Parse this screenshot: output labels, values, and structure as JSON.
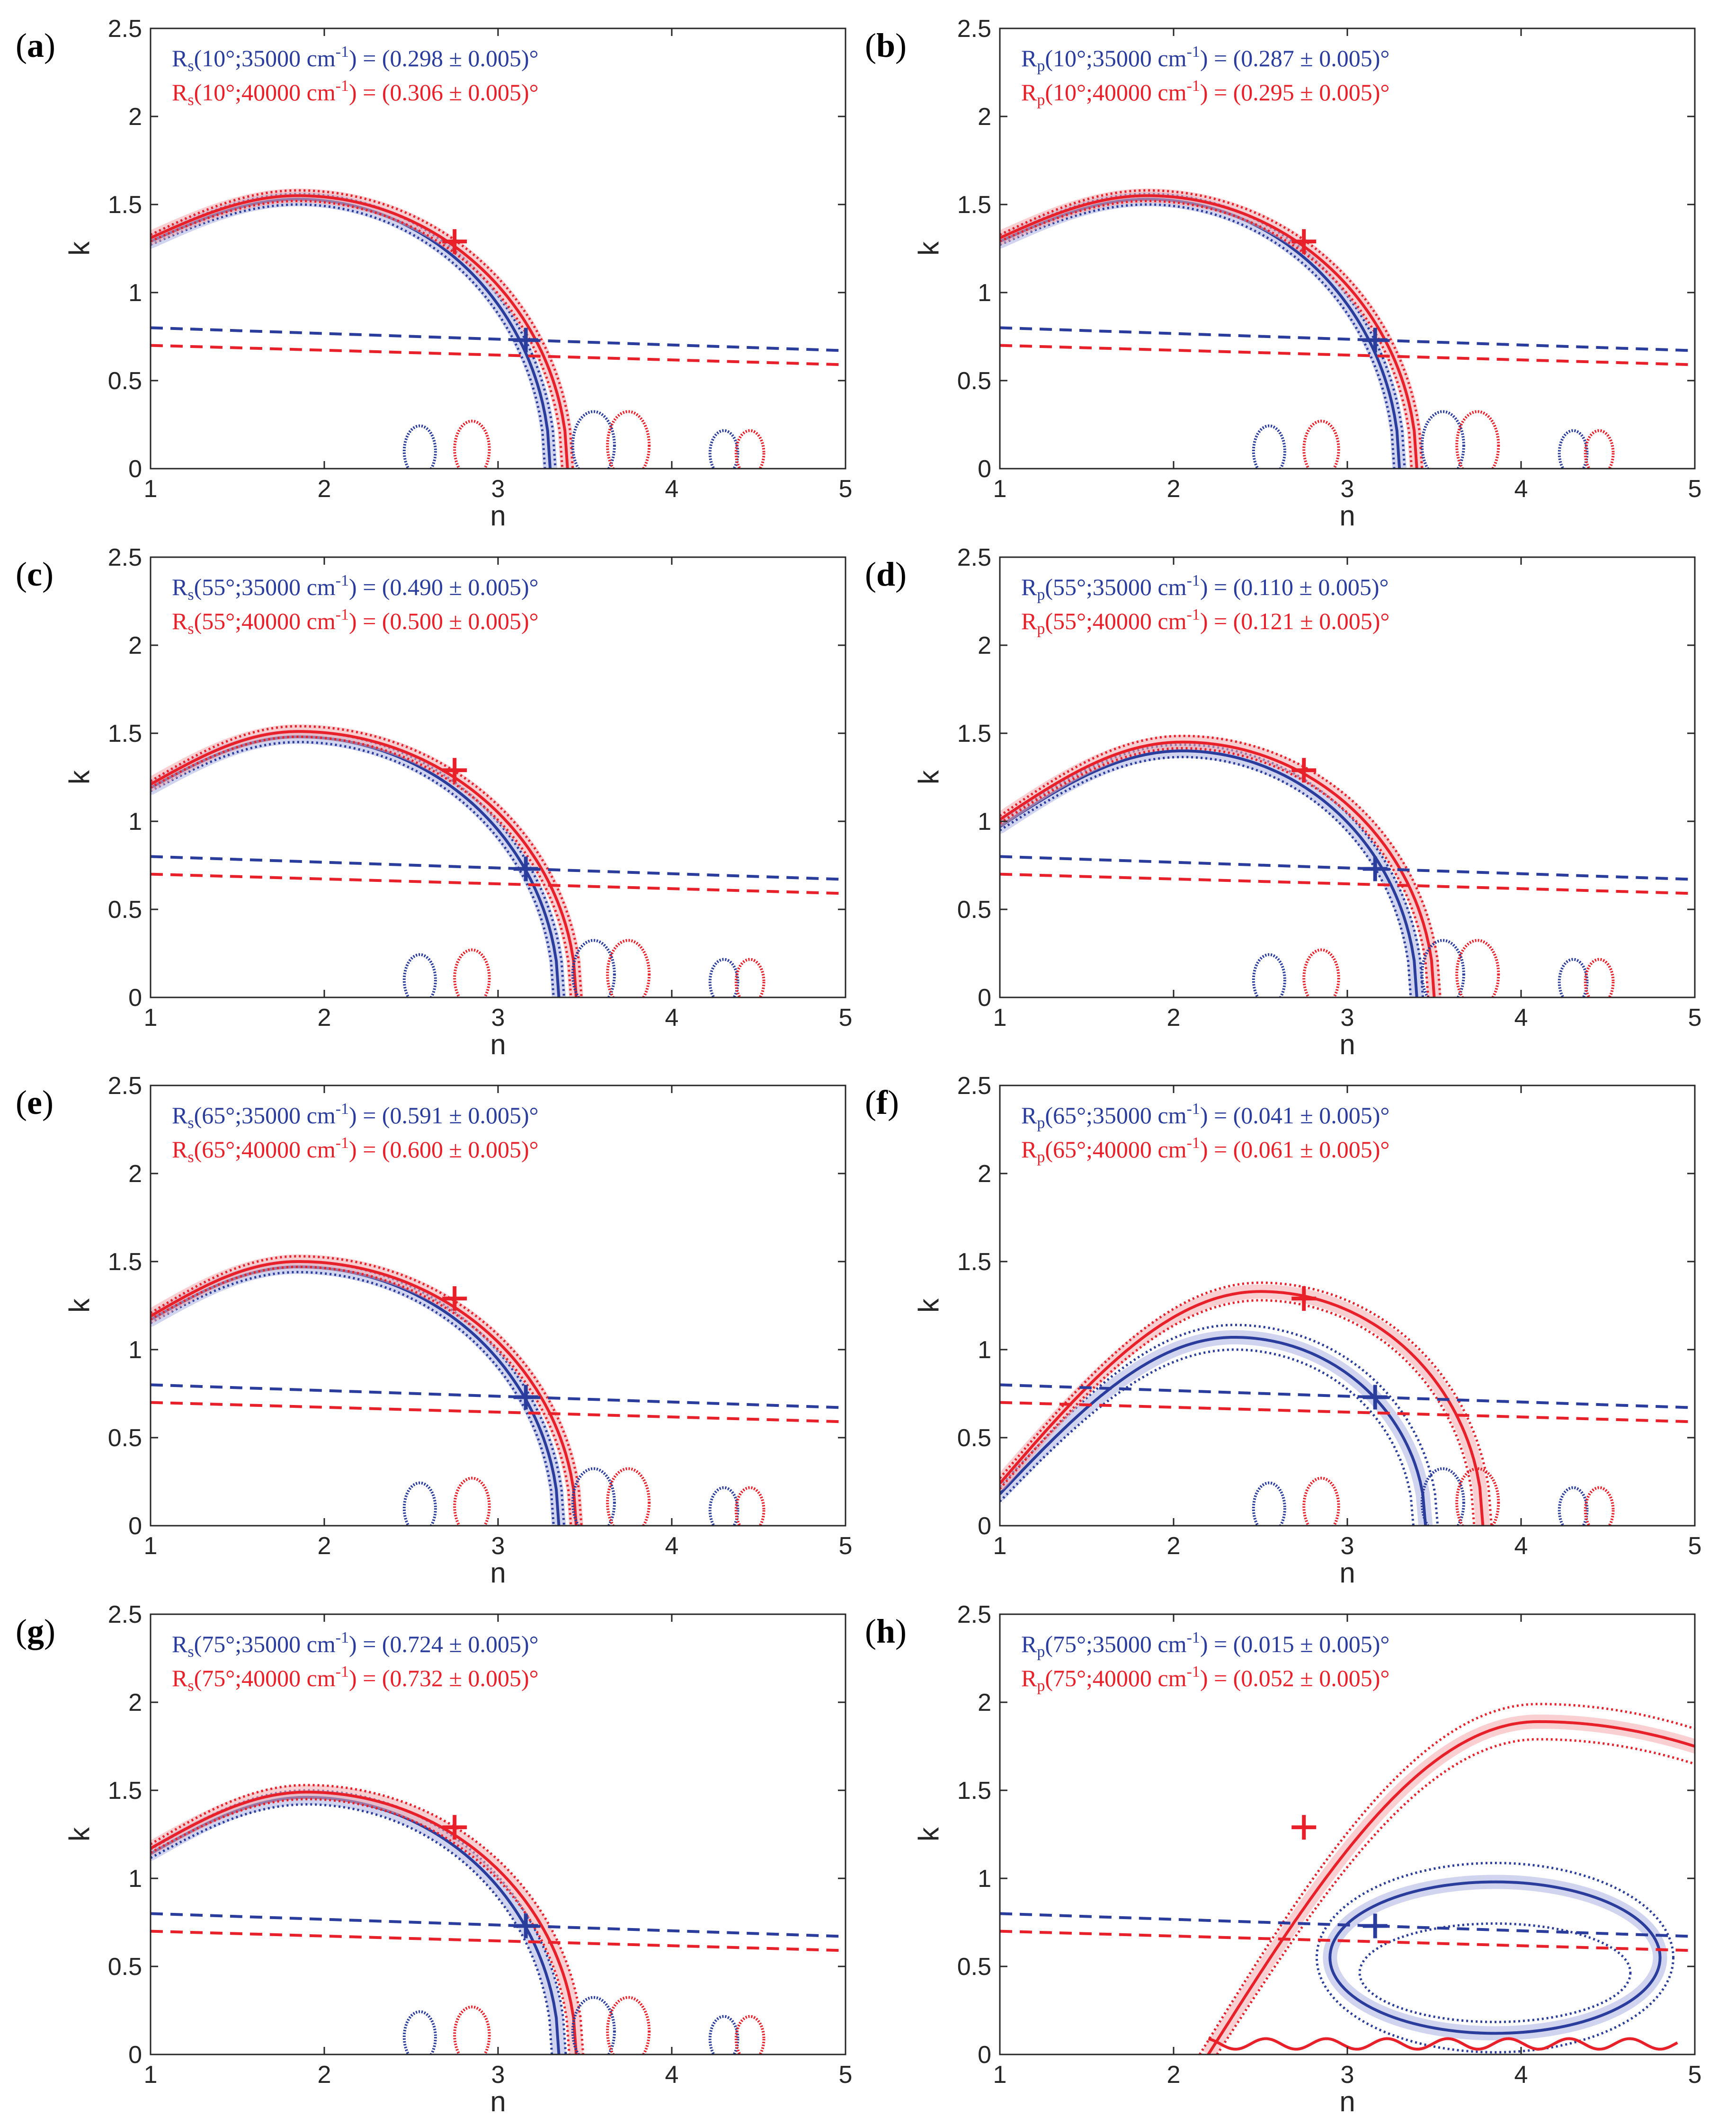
{
  "colors": {
    "blue": "#2a3d9c",
    "red": "#e8202a",
    "blue_band": "#a9b0e0",
    "red_band": "#f5a7ad",
    "axes": "#262626"
  },
  "chart_data": [
    {
      "type": "line",
      "panel_label": "(a)",
      "xlabel": "n",
      "ylabel": "k",
      "xlim": [
        1,
        5
      ],
      "ylim": [
        0,
        2.5
      ],
      "xticks": [
        "1",
        "2",
        "3",
        "4",
        "5"
      ],
      "yticks": [
        "0",
        "0.5",
        "1",
        "1.5",
        "2",
        "2.5"
      ],
      "annotations": [
        {
          "sym": "R",
          "sub": "s",
          "text": "(10°;35000 cm",
          "sup": "-1",
          "value": ") = (0.298 ± 0.005)°",
          "color": "blue"
        },
        {
          "sym": "R",
          "sub": "s",
          "text": "(10°;40000 cm",
          "sup": "-1",
          "value": ") = (0.306 ± 0.005)°",
          "color": "red"
        }
      ],
      "markers": [
        {
          "series": "35000 cm-1",
          "n": 3.16,
          "k": 0.73
        },
        {
          "series": "40000 cm-1",
          "n": 2.75,
          "k": 1.29
        }
      ],
      "arcs": [
        {
          "series": "35000 cm-1",
          "n0": 1.0,
          "k0": 1.29,
          "kmax": 1.53,
          "n_peak": 1.85,
          "n_end": 3.3,
          "spread": 0.03
        },
        {
          "series": "40000 cm-1",
          "n0": 1.0,
          "k0": 1.31,
          "kmax": 1.55,
          "n_peak": 1.85,
          "n_end": 3.4,
          "spread": 0.03
        }
      ],
      "dispersion_lines": [
        {
          "series": "35000 cm-1",
          "k_at_1": 0.8,
          "k_at_5": 0.67
        },
        {
          "series": "40000 cm-1",
          "k_at_1": 0.7,
          "k_at_5": 0.59
        }
      ]
    },
    {
      "type": "line",
      "panel_label": "(b)",
      "xlabel": "n",
      "ylabel": "k",
      "xlim": [
        1,
        5
      ],
      "ylim": [
        0,
        2.5
      ],
      "xticks": [
        "1",
        "2",
        "3",
        "4",
        "5"
      ],
      "yticks": [
        "0",
        "0.5",
        "1",
        "1.5",
        "2",
        "2.5"
      ],
      "annotations": [
        {
          "sym": "R",
          "sub": "p",
          "text": "(10°;35000 cm",
          "sup": "-1",
          "value": ") = (0.287 ± 0.005)°",
          "color": "blue"
        },
        {
          "sym": "R",
          "sub": "p",
          "text": "(10°;40000 cm",
          "sup": "-1",
          "value": ") = (0.295 ± 0.005)°",
          "color": "red"
        }
      ],
      "markers": [
        {
          "series": "35000 cm-1",
          "n": 3.16,
          "k": 0.73
        },
        {
          "series": "40000 cm-1",
          "n": 2.75,
          "k": 1.29
        }
      ],
      "arcs": [
        {
          "series": "35000 cm-1",
          "n0": 1.0,
          "k0": 1.29,
          "kmax": 1.53,
          "n_peak": 1.85,
          "n_end": 3.3,
          "spread": 0.03
        },
        {
          "series": "40000 cm-1",
          "n0": 1.0,
          "k0": 1.31,
          "kmax": 1.55,
          "n_peak": 1.85,
          "n_end": 3.4,
          "spread": 0.03
        }
      ],
      "dispersion_lines": [
        {
          "series": "35000 cm-1",
          "k_at_1": 0.8,
          "k_at_5": 0.67
        },
        {
          "series": "40000 cm-1",
          "k_at_1": 0.7,
          "k_at_5": 0.59
        }
      ]
    },
    {
      "type": "line",
      "panel_label": "(c)",
      "xlabel": "n",
      "ylabel": "k",
      "xlim": [
        1,
        5
      ],
      "ylim": [
        0,
        2.5
      ],
      "xticks": [
        "1",
        "2",
        "3",
        "4",
        "5"
      ],
      "yticks": [
        "0",
        "0.5",
        "1",
        "1.5",
        "2",
        "2.5"
      ],
      "annotations": [
        {
          "sym": "R",
          "sub": "s",
          "text": "(55°;35000 cm",
          "sup": "-1",
          "value": ") = (0.490 ± 0.005)°",
          "color": "blue"
        },
        {
          "sym": "R",
          "sub": "s",
          "text": "(55°;40000 cm",
          "sup": "-1",
          "value": ") = (0.500 ± 0.005)°",
          "color": "red"
        }
      ],
      "markers": [
        {
          "series": "35000 cm-1",
          "n": 3.16,
          "k": 0.73
        },
        {
          "series": "40000 cm-1",
          "n": 2.75,
          "k": 1.29
        }
      ],
      "arcs": [
        {
          "series": "35000 cm-1",
          "n0": 1.0,
          "k0": 1.19,
          "kmax": 1.48,
          "n_peak": 1.85,
          "n_end": 3.35,
          "spread": 0.03
        },
        {
          "series": "40000 cm-1",
          "n0": 1.0,
          "k0": 1.21,
          "kmax": 1.51,
          "n_peak": 1.85,
          "n_end": 3.45,
          "spread": 0.03
        }
      ],
      "dispersion_lines": [
        {
          "series": "35000 cm-1",
          "k_at_1": 0.8,
          "k_at_5": 0.67
        },
        {
          "series": "40000 cm-1",
          "k_at_1": 0.7,
          "k_at_5": 0.59
        }
      ]
    },
    {
      "type": "line",
      "panel_label": "(d)",
      "xlabel": "n",
      "ylabel": "k",
      "xlim": [
        1,
        5
      ],
      "ylim": [
        0,
        2.5
      ],
      "xticks": [
        "1",
        "2",
        "3",
        "4",
        "5"
      ],
      "yticks": [
        "0",
        "0.5",
        "1",
        "1.5",
        "2",
        "2.5"
      ],
      "annotations": [
        {
          "sym": "R",
          "sub": "p",
          "text": "(55°;35000 cm",
          "sup": "-1",
          "value": ") = (0.110 ± 0.005)°",
          "color": "blue"
        },
        {
          "sym": "R",
          "sub": "p",
          "text": "(55°;40000 cm",
          "sup": "-1",
          "value": ") = (0.121 ± 0.005)°",
          "color": "red"
        }
      ],
      "markers": [
        {
          "series": "35000 cm-1",
          "n": 3.16,
          "k": 0.73
        },
        {
          "series": "40000 cm-1",
          "n": 2.75,
          "k": 1.29
        }
      ],
      "arcs": [
        {
          "series": "35000 cm-1",
          "n0": 1.0,
          "k0": 0.97,
          "kmax": 1.4,
          "n_peak": 2.05,
          "n_end": 3.4,
          "spread": 0.035
        },
        {
          "series": "40000 cm-1",
          "n0": 1.0,
          "k0": 1.01,
          "kmax": 1.45,
          "n_peak": 2.05,
          "n_end": 3.5,
          "spread": 0.035
        }
      ],
      "dispersion_lines": [
        {
          "series": "35000 cm-1",
          "k_at_1": 0.8,
          "k_at_5": 0.67
        },
        {
          "series": "40000 cm-1",
          "k_at_1": 0.7,
          "k_at_5": 0.59
        }
      ]
    },
    {
      "type": "line",
      "panel_label": "(e)",
      "xlabel": "n",
      "ylabel": "k",
      "xlim": [
        1,
        5
      ],
      "ylim": [
        0,
        2.5
      ],
      "xticks": [
        "1",
        "2",
        "3",
        "4",
        "5"
      ],
      "yticks": [
        "0",
        "0.5",
        "1",
        "1.5",
        "2",
        "2.5"
      ],
      "annotations": [
        {
          "sym": "R",
          "sub": "s",
          "text": "(65°;35000 cm",
          "sup": "-1",
          "value": ") = (0.591 ± 0.005)°",
          "color": "blue"
        },
        {
          "sym": "R",
          "sub": "s",
          "text": "(65°;40000 cm",
          "sup": "-1",
          "value": ") = (0.600 ± 0.005)°",
          "color": "red"
        }
      ],
      "markers": [
        {
          "series": "35000 cm-1",
          "n": 3.16,
          "k": 0.73
        },
        {
          "series": "40000 cm-1",
          "n": 2.75,
          "k": 1.29
        }
      ],
      "arcs": [
        {
          "series": "35000 cm-1",
          "n0": 1.0,
          "k0": 1.17,
          "kmax": 1.47,
          "n_peak": 1.85,
          "n_end": 3.35,
          "spread": 0.03
        },
        {
          "series": "40000 cm-1",
          "n0": 1.0,
          "k0": 1.19,
          "kmax": 1.5,
          "n_peak": 1.85,
          "n_end": 3.45,
          "spread": 0.03
        }
      ],
      "dispersion_lines": [
        {
          "series": "35000 cm-1",
          "k_at_1": 0.8,
          "k_at_5": 0.67
        },
        {
          "series": "40000 cm-1",
          "k_at_1": 0.7,
          "k_at_5": 0.59
        }
      ]
    },
    {
      "type": "line",
      "panel_label": "(f)",
      "xlabel": "n",
      "ylabel": "k",
      "xlim": [
        1,
        5
      ],
      "ylim": [
        0,
        2.5
      ],
      "xticks": [
        "1",
        "2",
        "3",
        "4",
        "5"
      ],
      "yticks": [
        "0",
        "0.5",
        "1",
        "1.5",
        "2",
        "2.5"
      ],
      "annotations": [
        {
          "sym": "R",
          "sub": "p",
          "text": "(65°;35000 cm",
          "sup": "-1",
          "value": ") = (0.041 ± 0.005)°",
          "color": "blue"
        },
        {
          "sym": "R",
          "sub": "p",
          "text": "(65°;40000 cm",
          "sup": "-1",
          "value": ") = (0.061 ± 0.005)°",
          "color": "red"
        }
      ],
      "markers": [
        {
          "series": "35000 cm-1",
          "n": 3.16,
          "k": 0.73
        },
        {
          "series": "40000 cm-1",
          "n": 2.75,
          "k": 1.29
        }
      ],
      "arcs": [
        {
          "series": "35000 cm-1",
          "n0": 1.0,
          "k0": 0.18,
          "kmax": 1.07,
          "n_peak": 2.35,
          "n_end": 3.45,
          "spread": 0.07
        },
        {
          "series": "40000 cm-1",
          "n0": 1.0,
          "k0": 0.24,
          "kmax": 1.33,
          "n_peak": 2.5,
          "n_end": 3.78,
          "spread": 0.05
        }
      ],
      "dispersion_lines": [
        {
          "series": "35000 cm-1",
          "k_at_1": 0.8,
          "k_at_5": 0.67
        },
        {
          "series": "40000 cm-1",
          "k_at_1": 0.7,
          "k_at_5": 0.59
        }
      ]
    },
    {
      "type": "line",
      "panel_label": "(g)",
      "xlabel": "n",
      "ylabel": "k",
      "xlim": [
        1,
        5
      ],
      "ylim": [
        0,
        2.5
      ],
      "xticks": [
        "1",
        "2",
        "3",
        "4",
        "5"
      ],
      "yticks": [
        "0",
        "0.5",
        "1",
        "1.5",
        "2",
        "2.5"
      ],
      "annotations": [
        {
          "sym": "R",
          "sub": "s",
          "text": "(75°;35000 cm",
          "sup": "-1",
          "value": ") = (0.724 ± 0.005)°",
          "color": "blue"
        },
        {
          "sym": "R",
          "sub": "s",
          "text": "(75°;40000 cm",
          "sup": "-1",
          "value": ") = (0.732 ± 0.005)°",
          "color": "red"
        }
      ],
      "markers": [
        {
          "series": "35000 cm-1",
          "n": 3.16,
          "k": 0.73
        },
        {
          "series": "40000 cm-1",
          "n": 2.75,
          "k": 1.29
        }
      ],
      "arcs": [
        {
          "series": "35000 cm-1",
          "n0": 1.0,
          "k0": 1.14,
          "kmax": 1.46,
          "n_peak": 1.9,
          "n_end": 3.35,
          "spread": 0.04
        },
        {
          "series": "40000 cm-1",
          "n0": 1.0,
          "k0": 1.17,
          "kmax": 1.49,
          "n_peak": 1.9,
          "n_end": 3.45,
          "spread": 0.04
        }
      ],
      "dispersion_lines": [
        {
          "series": "35000 cm-1",
          "k_at_1": 0.8,
          "k_at_5": 0.67
        },
        {
          "series": "40000 cm-1",
          "k_at_1": 0.7,
          "k_at_5": 0.59
        }
      ]
    },
    {
      "type": "line",
      "panel_label": "(h)",
      "xlabel": "n",
      "ylabel": "k",
      "xlim": [
        1,
        5
      ],
      "ylim": [
        0,
        2.5
      ],
      "xticks": [
        "1",
        "2",
        "3",
        "4",
        "5"
      ],
      "yticks": [
        "0",
        "0.5",
        "1",
        "1.5",
        "2",
        "2.5"
      ],
      "annotations": [
        {
          "sym": "R",
          "sub": "p",
          "text": "(75°;35000 cm",
          "sup": "-1",
          "value": ") = (0.015 ± 0.005)°",
          "color": "blue"
        },
        {
          "sym": "R",
          "sub": "p",
          "text": "(75°;40000 cm",
          "sup": "-1",
          "value": ") = (0.052 ± 0.005)°",
          "color": "red"
        }
      ],
      "markers": [
        {
          "series": "35000 cm-1",
          "n": 3.16,
          "k": 0.73
        },
        {
          "series": "40000 cm-1",
          "n": 2.75,
          "k": 1.29
        }
      ],
      "arcs": [],
      "ellipse_loop": {
        "series": "35000 cm-1",
        "n_center": 3.85,
        "n_halfwidth": 0.95,
        "k_top": 0.98,
        "k_bottom": 0.12
      },
      "outer_arc": {
        "series": "40000 cm-1",
        "n_start": 2.2,
        "n_peak": 4.1,
        "k_peak": 1.89,
        "k_at_5": 1.75,
        "spread": 0.1
      },
      "dispersion_lines": [
        {
          "series": "35000 cm-1",
          "k_at_1": 0.8,
          "k_at_5": 0.67
        },
        {
          "series": "40000 cm-1",
          "k_at_1": 0.7,
          "k_at_5": 0.59
        }
      ]
    }
  ]
}
